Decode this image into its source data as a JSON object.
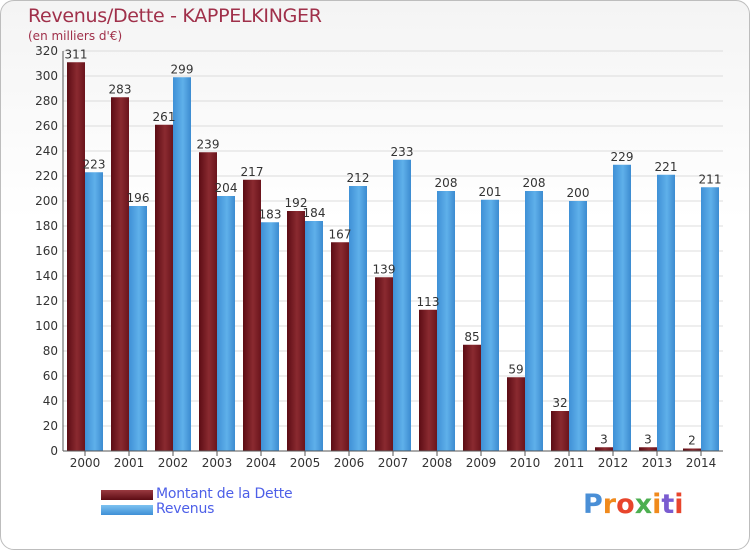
{
  "title": "Revenus/Dette - KAPPELKINGER",
  "subtitle": "(en milliers d'€)",
  "logo": {
    "text": "Proxiti",
    "colors": [
      "#4a8fd6",
      "#f08a1c",
      "#e8452c",
      "#4caf50",
      "#f08a1c",
      "#7a5cd0",
      "#e8452c"
    ]
  },
  "colors": {
    "debt": "#7a1a22",
    "revenue": "#4da3e4",
    "axis_text": "#333333",
    "title": "#a0304a",
    "legend_text": "#4d5fe8"
  },
  "chart_data": {
    "type": "bar",
    "title": "Revenus/Dette - KAPPELKINGER",
    "subtitle": "(en milliers d'€)",
    "categories": [
      "2000",
      "2001",
      "2002",
      "2003",
      "2004",
      "2005",
      "2006",
      "2007",
      "2008",
      "2009",
      "2010",
      "2011",
      "2012",
      "2013",
      "2014"
    ],
    "series": [
      {
        "name": "Montant de la Dette",
        "color": "#7a1a22",
        "values": [
          311,
          283,
          261,
          239,
          217,
          192,
          167,
          139,
          113,
          85,
          59,
          32,
          3,
          3,
          2
        ]
      },
      {
        "name": "Revenus",
        "color": "#4da3e4",
        "values": [
          223,
          196,
          299,
          204,
          183,
          184,
          212,
          233,
          208,
          201,
          208,
          200,
          229,
          221,
          211
        ]
      }
    ],
    "yticks": [
      0,
      20,
      40,
      60,
      80,
      100,
      120,
      140,
      160,
      180,
      200,
      220,
      240,
      260,
      280,
      300,
      320
    ],
    "ylim": [
      0,
      320
    ],
    "grid": true,
    "legend": "bottom-left"
  },
  "legend": {
    "items": [
      {
        "label": "Montant de la Dette"
      },
      {
        "label": "Revenus"
      }
    ]
  }
}
